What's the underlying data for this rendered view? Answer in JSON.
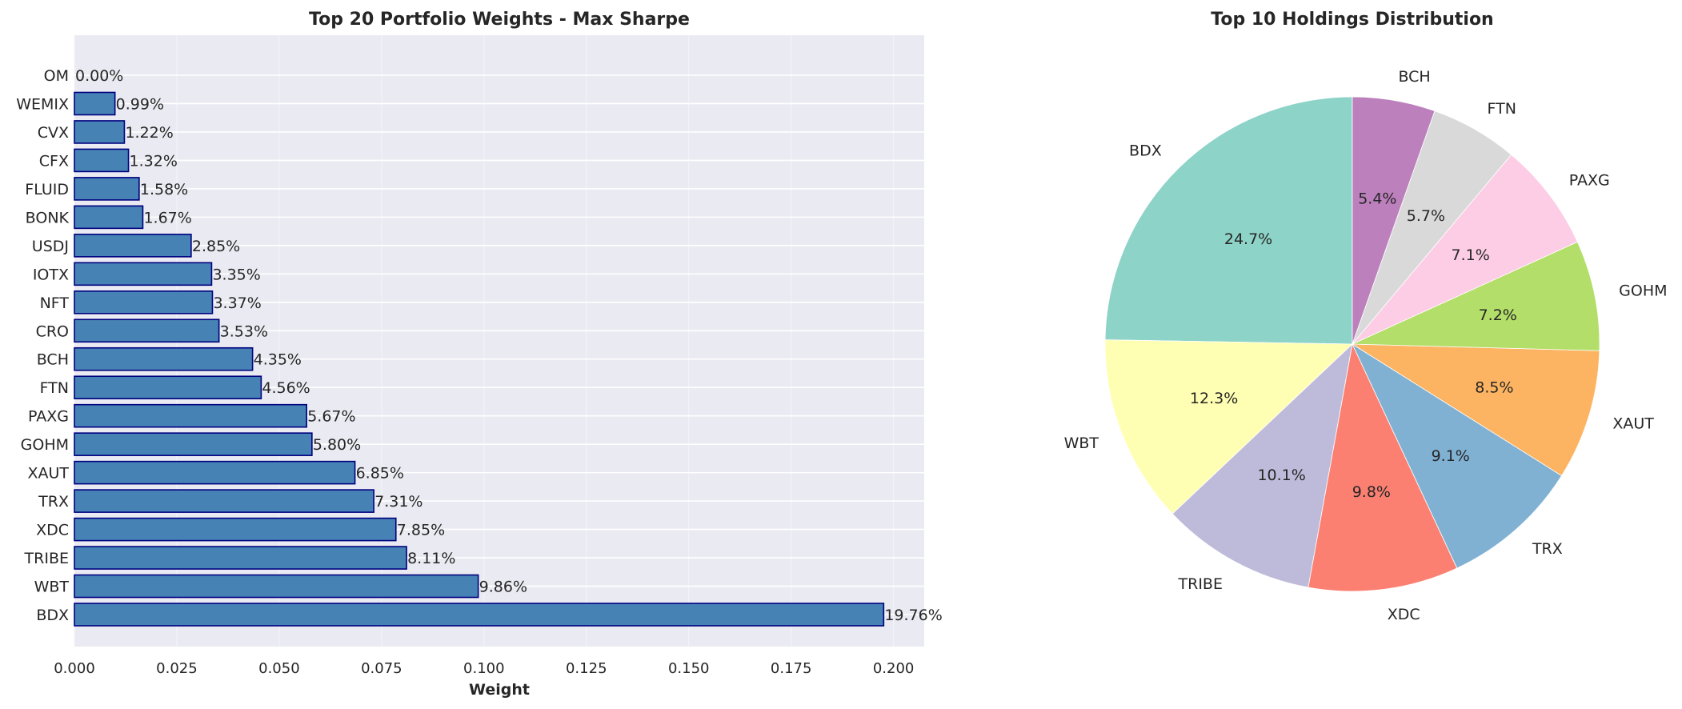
{
  "chart_data": [
    {
      "type": "bar",
      "orientation": "horizontal",
      "title": "Top 20 Portfolio Weights - Max Sharpe",
      "xlabel": "Weight",
      "ylabel": "",
      "categories": [
        "BDX",
        "WBT",
        "TRIBE",
        "XDC",
        "TRX",
        "XAUT",
        "GOHM",
        "PAXG",
        "FTN",
        "BCH",
        "CRO",
        "NFT",
        "IOTX",
        "USDJ",
        "BONK",
        "FLUID",
        "CFX",
        "CVX",
        "WEMIX",
        "OM"
      ],
      "values": [
        0.1976,
        0.0986,
        0.0811,
        0.0785,
        0.0731,
        0.0685,
        0.058,
        0.0567,
        0.0456,
        0.0435,
        0.0353,
        0.0337,
        0.0335,
        0.0285,
        0.0167,
        0.0158,
        0.0132,
        0.0122,
        0.0099,
        0.0
      ],
      "data_labels": [
        "19.76%",
        "9.86%",
        "8.11%",
        "7.85%",
        "7.31%",
        "6.85%",
        "5.80%",
        "5.67%",
        "4.56%",
        "4.35%",
        "3.53%",
        "3.37%",
        "3.35%",
        "2.85%",
        "1.67%",
        "1.58%",
        "1.32%",
        "1.22%",
        "0.99%",
        "0.00%"
      ],
      "xlim": [
        0,
        0.2075
      ],
      "xticks": [
        0.0,
        0.025,
        0.05,
        0.075,
        0.1,
        0.125,
        0.15,
        0.175,
        0.2
      ],
      "xtick_labels": [
        "0.000",
        "0.025",
        "0.050",
        "0.075",
        "0.100",
        "0.125",
        "0.150",
        "0.175",
        "0.200"
      ],
      "bar_color": "#4682b4",
      "bar_edge_color": "#000080",
      "background_color": "#eaeaf2",
      "grid": true
    },
    {
      "type": "pie",
      "title": "Top 10 Holdings Distribution",
      "labels": [
        "BDX",
        "WBT",
        "TRIBE",
        "XDC",
        "TRX",
        "XAUT",
        "GOHM",
        "PAXG",
        "FTN",
        "BCH"
      ],
      "values": [
        24.7,
        12.3,
        10.1,
        9.8,
        9.1,
        8.5,
        7.2,
        7.1,
        5.7,
        5.4
      ],
      "pct_labels": [
        "24.7%",
        "12.3%",
        "10.1%",
        "9.8%",
        "9.1%",
        "8.5%",
        "7.2%",
        "7.1%",
        "5.7%",
        "5.4%"
      ],
      "colors": [
        "#8dd3c7",
        "#ffffb3",
        "#bebada",
        "#fb8072",
        "#80b1d3",
        "#fdb462",
        "#b3de69",
        "#fccde5",
        "#d9d9d9",
        "#bc80bd"
      ],
      "start_angle": 90,
      "direction": "counterclockwise"
    }
  ]
}
